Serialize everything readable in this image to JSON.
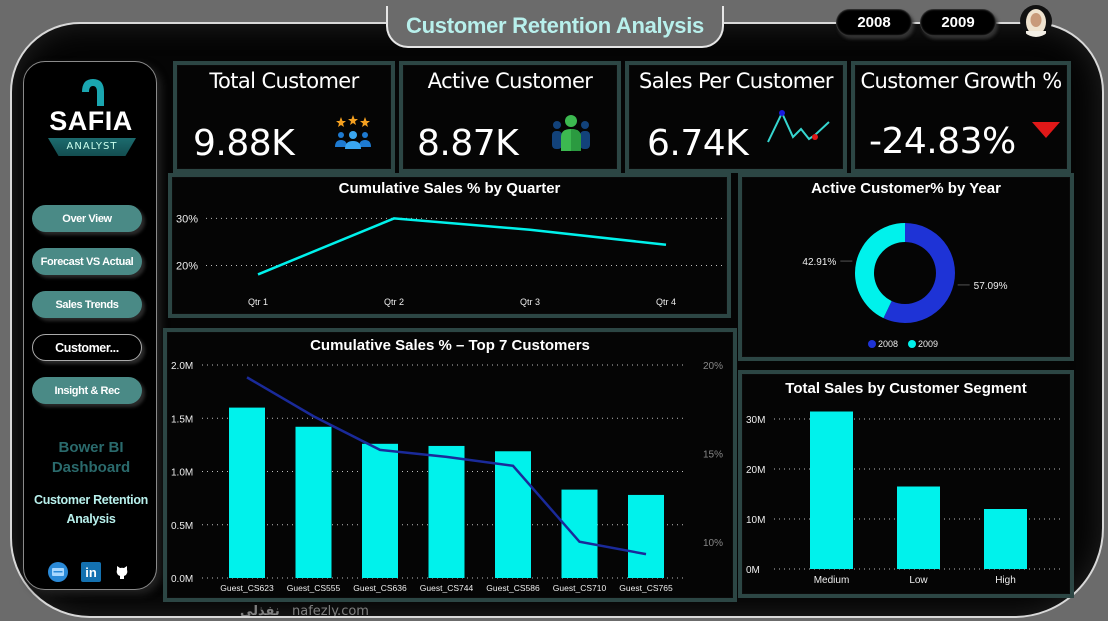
{
  "header": {
    "title": "Customer Retention Analysis",
    "year_filters": [
      "2008",
      "2009"
    ]
  },
  "sidebar": {
    "logo_name": "SAFIA",
    "logo_sub": "ANALYST",
    "nav": [
      {
        "label": "Over View",
        "active": false
      },
      {
        "label": "Forecast VS Actual",
        "active": false
      },
      {
        "label": "Sales Trends",
        "active": false
      },
      {
        "label": "Customer...",
        "active": true
      },
      {
        "label": "Insight & Rec",
        "active": false
      }
    ],
    "caption_1": "Bower BI Dashboard",
    "caption_2": "Customer Retention Analysis",
    "social_icons": [
      "portfolio-icon",
      "linkedin-icon",
      "github-icon"
    ],
    "linkedin_text": "in"
  },
  "kpis": [
    {
      "title": "Total Customer",
      "value": "9.88K",
      "icon": "customers-stars-icon"
    },
    {
      "title": "Active Customer",
      "value": "8.87K",
      "icon": "active-customer-icon"
    },
    {
      "title": "Sales Per Customer",
      "value": "6.74K",
      "icon": "sparkline"
    },
    {
      "title": "Customer Growth %",
      "value": "-24.83%",
      "icon": "down-triangle-icon"
    }
  ],
  "colors": {
    "accent": "#00f2ec",
    "line_dark": "#1a2a9a",
    "donut_2008": "#1e33d6",
    "donut_2009": "#00f2ec",
    "down": "#e01818"
  },
  "watermark": {
    "arabic": "نفذلي",
    "latin": "nafezly.com"
  },
  "chart_data": [
    {
      "id": "quarter",
      "type": "line",
      "title": "Cumulative Sales % by Quarter",
      "categories": [
        "Qtr 1",
        "Qtr 2",
        "Qtr 3",
        "Qtr 4"
      ],
      "values": [
        18.1,
        30.0,
        27.6,
        24.4
      ],
      "yticks": [
        "20%",
        "30%"
      ],
      "ytick_values": [
        20,
        30
      ],
      "ylim": [
        15,
        32
      ],
      "grid": true
    },
    {
      "id": "donut",
      "type": "pie",
      "title": "Active Customer% by Year",
      "labels": [
        "2008",
        "2009"
      ],
      "values": [
        57.09,
        42.91
      ],
      "data_labels": [
        "57.09%",
        "42.91%"
      ],
      "legend": "bottom"
    },
    {
      "id": "top7",
      "type": "bar",
      "title": "Cumulative Sales % – Top 7 Customers",
      "categories": [
        "Guest_CS623",
        "Guest_CS555",
        "Guest_CS636",
        "Guest_CS744",
        "Guest_CS586",
        "Guest_CS710",
        "Guest_CS765"
      ],
      "series": [
        {
          "name": "Sales",
          "type": "bar",
          "values": [
            1.6,
            1.42,
            1.26,
            1.24,
            1.19,
            0.83,
            0.78
          ]
        },
        {
          "name": "Cumulative Sales %",
          "type": "line",
          "axis": "right",
          "values": [
            19.3,
            17.1,
            15.2,
            14.8,
            14.3,
            10.0,
            9.3
          ]
        }
      ],
      "yticks": [
        "0.0M",
        "0.5M",
        "1.0M",
        "1.5M",
        "2.0M"
      ],
      "ytick_values": [
        0,
        0.5,
        1.0,
        1.5,
        2.0
      ],
      "ylim": [
        0,
        2.0
      ],
      "y2ticks": [
        "10%",
        "15%",
        "20%"
      ],
      "y2tick_values": [
        10,
        15,
        20
      ],
      "y2lim": [
        7.95,
        20
      ],
      "grid": true
    },
    {
      "id": "segment",
      "type": "bar",
      "title": "Total Sales by Customer Segment",
      "categories": [
        "Medium",
        "Low",
        "High"
      ],
      "values": [
        31.5,
        16.5,
        12.0
      ],
      "yticks": [
        "0M",
        "10M",
        "20M",
        "30M"
      ],
      "ytick_values": [
        0,
        10,
        20,
        30
      ],
      "ylim": [
        0,
        34
      ],
      "grid": true
    }
  ]
}
